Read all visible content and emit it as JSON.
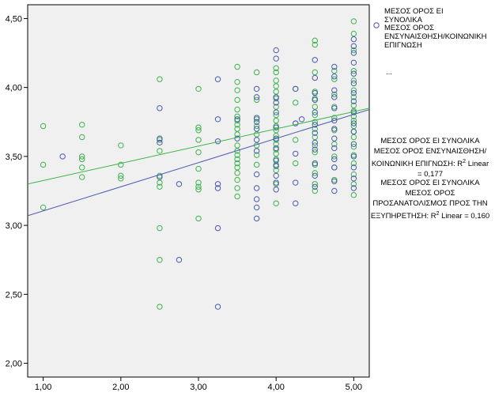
{
  "chart_data": {
    "type": "scatter",
    "xlim": [
      0.8,
      5.2
    ],
    "ylim": [
      1.9,
      4.6
    ],
    "xticks": [
      {
        "v": 1,
        "label": "1,00"
      },
      {
        "v": 2,
        "label": "2,00"
      },
      {
        "v": 3,
        "label": "3,00"
      },
      {
        "v": 4,
        "label": "4,00"
      },
      {
        "v": 5,
        "label": "5,00"
      }
    ],
    "yticks": [
      {
        "v": 2.0,
        "label": "2,00"
      },
      {
        "v": 2.5,
        "label": "2,50"
      },
      {
        "v": 3.0,
        "label": "3,00"
      },
      {
        "v": 3.5,
        "label": "3,50"
      },
      {
        "v": 4.0,
        "label": "4,00"
      },
      {
        "v": 4.5,
        "label": "4,50"
      }
    ],
    "grid": false,
    "legend": {
      "placement": "top-right",
      "entries": [
        "ΜΕΣΟΣ ΟΡΟΣ ΕΙ ΣΥΝΟΛΙΚΑ",
        "ΜΕΣΟΣ ΟΡΟΣ ΕΝΣΥΝΑΙΣΘΗΣΗ/ΚΟΙΝΩΝΙΚΗ ΕΠΙΓΝΩΣΗ"
      ],
      "ellipsis": "..."
    },
    "colors": {
      "plot_bg": "#f0f0f0",
      "green": "#3cb44b",
      "blue": "#4a5ab0"
    },
    "series": [
      {
        "name": "ΜΕΣΟΣ ΟΡΟΣ ΕΝΣΥΝΑΙΣΘΗΣΗ/ΚΟΙΝΩΝΙΚΗ ΕΠΙΓΝΩΣΗ",
        "color": "#3cb44b",
        "points": [
          [
            1.0,
            3.72
          ],
          [
            1.0,
            3.44
          ],
          [
            1.0,
            3.13
          ],
          [
            1.5,
            3.73
          ],
          [
            1.5,
            3.64
          ],
          [
            1.5,
            3.5
          ],
          [
            1.5,
            3.48
          ],
          [
            1.5,
            3.42
          ],
          [
            1.5,
            3.35
          ],
          [
            2.0,
            3.58
          ],
          [
            2.0,
            3.44
          ],
          [
            2.0,
            3.36
          ],
          [
            2.0,
            3.34
          ],
          [
            2.5,
            4.06
          ],
          [
            2.5,
            3.62
          ],
          [
            2.5,
            3.54
          ],
          [
            2.5,
            3.36
          ],
          [
            2.5,
            3.31
          ],
          [
            2.5,
            3.28
          ],
          [
            2.5,
            2.98
          ],
          [
            2.5,
            2.75
          ],
          [
            2.5,
            2.41
          ],
          [
            3.0,
            3.99
          ],
          [
            3.0,
            3.71
          ],
          [
            3.0,
            3.69
          ],
          [
            3.0,
            3.62
          ],
          [
            3.0,
            3.53
          ],
          [
            3.0,
            3.41
          ],
          [
            3.0,
            3.31
          ],
          [
            3.0,
            3.28
          ],
          [
            3.0,
            3.26
          ],
          [
            3.0,
            3.05
          ],
          [
            3.5,
            4.15
          ],
          [
            3.5,
            4.04
          ],
          [
            3.5,
            3.98
          ],
          [
            3.5,
            3.91
          ],
          [
            3.5,
            3.84
          ],
          [
            3.5,
            3.79
          ],
          [
            3.5,
            3.76
          ],
          [
            3.5,
            3.73
          ],
          [
            3.5,
            3.7
          ],
          [
            3.5,
            3.66
          ],
          [
            3.5,
            3.58
          ],
          [
            3.5,
            3.54
          ],
          [
            3.5,
            3.51
          ],
          [
            3.5,
            3.48
          ],
          [
            3.5,
            3.45
          ],
          [
            3.5,
            3.42
          ],
          [
            3.5,
            3.38
          ],
          [
            3.5,
            3.33
          ],
          [
            3.5,
            3.27
          ],
          [
            3.5,
            3.21
          ],
          [
            3.75,
            4.11
          ],
          [
            3.75,
            3.91
          ],
          [
            3.75,
            3.77
          ],
          [
            3.75,
            3.72
          ],
          [
            3.75,
            3.66
          ],
          [
            3.75,
            3.58
          ],
          [
            3.75,
            3.51
          ],
          [
            3.75,
            3.44
          ],
          [
            4.0,
            4.14
          ],
          [
            4.0,
            4.11
          ],
          [
            4.0,
            4.05
          ],
          [
            4.0,
            4.01
          ],
          [
            4.0,
            3.97
          ],
          [
            4.0,
            3.92
          ],
          [
            4.0,
            3.86
          ],
          [
            4.0,
            3.8
          ],
          [
            4.0,
            3.76
          ],
          [
            4.0,
            3.72
          ],
          [
            4.0,
            3.69
          ],
          [
            4.0,
            3.65
          ],
          [
            4.0,
            3.62
          ],
          [
            4.0,
            3.59
          ],
          [
            4.0,
            3.55
          ],
          [
            4.0,
            3.52
          ],
          [
            4.0,
            3.48
          ],
          [
            4.0,
            3.44
          ],
          [
            4.0,
            3.4
          ],
          [
            4.0,
            3.3
          ],
          [
            4.0,
            3.16
          ],
          [
            4.25,
            3.99
          ],
          [
            4.25,
            3.89
          ],
          [
            4.25,
            3.74
          ],
          [
            4.25,
            3.62
          ],
          [
            4.25,
            3.45
          ],
          [
            4.5,
            4.34
          ],
          [
            4.5,
            4.31
          ],
          [
            4.5,
            4.11
          ],
          [
            4.5,
            3.97
          ],
          [
            4.5,
            3.92
          ],
          [
            4.5,
            3.86
          ],
          [
            4.5,
            3.8
          ],
          [
            4.5,
            3.75
          ],
          [
            4.5,
            3.7
          ],
          [
            4.5,
            3.64
          ],
          [
            4.5,
            3.58
          ],
          [
            4.5,
            3.53
          ],
          [
            4.5,
            3.44
          ],
          [
            4.5,
            3.38
          ],
          [
            4.5,
            3.3
          ],
          [
            4.5,
            3.25
          ],
          [
            4.75,
            4.12
          ],
          [
            4.75,
            4.06
          ],
          [
            4.75,
            3.95
          ],
          [
            4.75,
            3.86
          ],
          [
            4.75,
            3.78
          ],
          [
            4.75,
            3.69
          ],
          [
            4.75,
            3.59
          ],
          [
            4.75,
            3.5
          ],
          [
            4.75,
            3.42
          ],
          [
            4.75,
            3.33
          ],
          [
            5.0,
            4.48
          ],
          [
            5.0,
            4.39
          ],
          [
            5.0,
            4.27
          ],
          [
            5.0,
            4.12
          ],
          [
            5.0,
            4.05
          ],
          [
            5.0,
            3.98
          ],
          [
            5.0,
            3.93
          ],
          [
            5.0,
            3.87
          ],
          [
            5.0,
            3.83
          ],
          [
            5.0,
            3.79
          ],
          [
            5.0,
            3.76
          ],
          [
            5.0,
            3.72
          ],
          [
            5.0,
            3.68
          ],
          [
            5.0,
            3.64
          ],
          [
            5.0,
            3.57
          ],
          [
            5.0,
            3.51
          ],
          [
            5.0,
            3.45
          ],
          [
            5.0,
            3.37
          ],
          [
            5.0,
            3.3
          ],
          [
            5.0,
            3.22
          ]
        ]
      },
      {
        "name": "ΜΕΣΟΣ ΟΡΟΣ ΕΙ ΣΥΝΟΛΙΚΑ",
        "color": "#4a5ab0",
        "points": [
          [
            1.25,
            3.5
          ],
          [
            2.5,
            3.85
          ],
          [
            2.5,
            3.63
          ],
          [
            2.5,
            3.6
          ],
          [
            2.5,
            3.35
          ],
          [
            2.75,
            3.3
          ],
          [
            2.75,
            2.75
          ],
          [
            3.25,
            4.06
          ],
          [
            3.25,
            3.77
          ],
          [
            3.25,
            3.61
          ],
          [
            3.25,
            3.3
          ],
          [
            3.25,
            3.27
          ],
          [
            3.25,
            2.98
          ],
          [
            3.25,
            2.41
          ],
          [
            3.5,
            3.77
          ],
          [
            3.5,
            3.63
          ],
          [
            3.75,
            3.99
          ],
          [
            3.75,
            3.93
          ],
          [
            3.75,
            3.78
          ],
          [
            3.75,
            3.75
          ],
          [
            3.75,
            3.7
          ],
          [
            3.75,
            3.62
          ],
          [
            3.75,
            3.54
          ],
          [
            3.75,
            3.37
          ],
          [
            3.75,
            3.27
          ],
          [
            3.75,
            3.19
          ],
          [
            3.75,
            3.13
          ],
          [
            3.75,
            3.05
          ],
          [
            4.0,
            4.27
          ],
          [
            4.0,
            4.21
          ],
          [
            4.0,
            3.93
          ],
          [
            4.0,
            3.89
          ],
          [
            4.0,
            3.82
          ],
          [
            4.0,
            3.71
          ],
          [
            4.0,
            3.63
          ],
          [
            4.0,
            3.56
          ],
          [
            4.0,
            3.47
          ],
          [
            4.0,
            3.43
          ],
          [
            4.0,
            3.36
          ],
          [
            4.0,
            3.31
          ],
          [
            4.0,
            3.26
          ],
          [
            4.25,
            3.99
          ],
          [
            4.25,
            3.74
          ],
          [
            4.25,
            3.52
          ],
          [
            4.25,
            3.31
          ],
          [
            4.25,
            3.16
          ],
          [
            4.33,
            3.77
          ],
          [
            4.5,
            4.2
          ],
          [
            4.5,
            4.07
          ],
          [
            4.5,
            3.96
          ],
          [
            4.5,
            3.91
          ],
          [
            4.5,
            3.82
          ],
          [
            4.5,
            3.73
          ],
          [
            4.5,
            3.67
          ],
          [
            4.5,
            3.6
          ],
          [
            4.5,
            3.55
          ],
          [
            4.5,
            3.45
          ],
          [
            4.5,
            3.36
          ],
          [
            4.5,
            3.28
          ],
          [
            4.75,
            4.15
          ],
          [
            4.75,
            4.08
          ],
          [
            4.75,
            3.98
          ],
          [
            4.75,
            3.93
          ],
          [
            4.75,
            3.85
          ],
          [
            4.75,
            3.76
          ],
          [
            4.75,
            3.7
          ],
          [
            4.75,
            3.63
          ],
          [
            4.75,
            3.56
          ],
          [
            4.75,
            3.48
          ],
          [
            4.75,
            3.42
          ],
          [
            4.75,
            3.32
          ],
          [
            4.75,
            3.25
          ],
          [
            5.0,
            4.35
          ],
          [
            5.0,
            4.3
          ],
          [
            5.0,
            4.25
          ],
          [
            5.0,
            4.18
          ],
          [
            5.0,
            4.1
          ],
          [
            5.0,
            4.03
          ],
          [
            5.0,
            3.96
          ],
          [
            5.0,
            3.9
          ],
          [
            5.0,
            3.82
          ],
          [
            5.0,
            3.74
          ],
          [
            5.0,
            3.68
          ],
          [
            5.0,
            3.59
          ],
          [
            5.0,
            3.5
          ],
          [
            5.0,
            3.42
          ],
          [
            5.0,
            3.34
          ],
          [
            5.0,
            3.27
          ]
        ]
      }
    ],
    "fit_lines": [
      {
        "series": "green",
        "color": "#3cb44b",
        "x": [
          0.8,
          5.2
        ],
        "y": [
          3.3,
          3.85
        ]
      },
      {
        "series": "blue",
        "color": "#4a5ab0",
        "x": [
          0.8,
          5.2
        ],
        "y": [
          3.07,
          3.84
        ]
      }
    ],
    "annotations": {
      "r2_green_text": "ΜΕΣΟΣ ΟΡΟΣ ΕΙ ΣΥΝΟΛΙΚΑ ΜΕΣΟΣ ΟΡΟΣ ΕΝΣΥΝΑΙΣΘΗΣΗ/ΚΟΙΝΩΝΙΚΗ ΕΠΙΓΝΩΣΗ: R",
      "r2_green_value": " Linear = 0,177",
      "r2_blue_text": "ΜΕΣΟΣ ΟΡΟΣ ΕΙ ΣΥΝΟΛΙΚΑ ΜΕΣΟΣ ΟΡΟΣ ΠΡΟΣΑΝΑΤΟΛΙΣΜΟΣ ΠΡΟΣ ΤΗΝ ΕΞΥΠΗΡΕΤΗΣΗ: R",
      "r2_blue_value": " Linear = 0,160",
      "sup": "2"
    }
  }
}
